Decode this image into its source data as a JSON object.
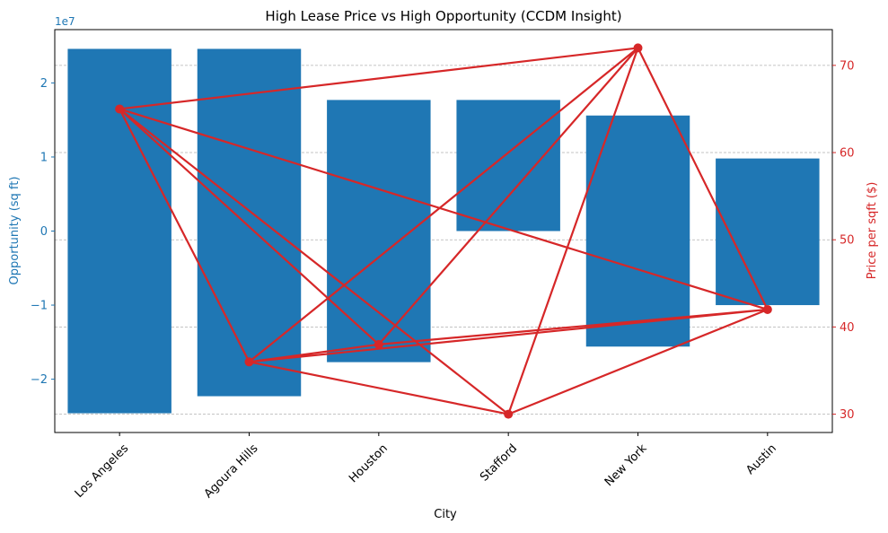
{
  "chart_data": {
    "type": "bar",
    "title": "High Lease Price vs High Opportunity (CCDM Insight)",
    "xlabel": "City",
    "ylabel_left": "Opportunity (sq ft)",
    "ylabel_right": "Price per sqft ($)",
    "left_axis_multiplier": "1e7",
    "categories": [
      "Los Angeles",
      "Agoura Hills",
      "Houston",
      "Stafford",
      "New York",
      "Austin"
    ],
    "bars": [
      {
        "category": "Los Angeles",
        "low": -24600000,
        "high": 24600000
      },
      {
        "category": "Agoura Hills",
        "low": -22300000,
        "high": 24600000
      },
      {
        "category": "Houston",
        "low": -17700000,
        "high": 17700000
      },
      {
        "category": "Stafford",
        "low": 0,
        "high": 17700000
      },
      {
        "category": "New York",
        "low": -15600000,
        "high": 15600000
      },
      {
        "category": "Austin",
        "low": -10000000,
        "high": 9800000
      }
    ],
    "left_ylim": [
      -27200000.0,
      27200000.0
    ],
    "left_ticks": [
      -20000000,
      -10000000,
      0,
      10000000,
      20000000
    ],
    "left_tick_labels": [
      "−2",
      "−1",
      "0",
      "1",
      "2"
    ],
    "right_ylim": [
      27.9,
      74.1
    ],
    "right_ticks": [
      30,
      40,
      50,
      60,
      70
    ],
    "right_tick_labels": [
      "30",
      "40",
      "50",
      "60",
      "70"
    ],
    "price_line": {
      "x": [
        0,
        4,
        0,
        1,
        4,
        5,
        0,
        3,
        4,
        1,
        5,
        3,
        0,
        2,
        5,
        1,
        2,
        0,
        1,
        3,
        5,
        2,
        4,
        3
      ],
      "y": [
        65,
        72,
        65,
        36,
        72,
        42,
        65,
        30,
        72,
        36,
        42,
        30,
        65,
        38,
        42,
        36,
        38,
        65,
        36,
        30,
        42,
        38,
        72,
        30
      ]
    },
    "grid": "y-dashed",
    "colors": {
      "bar": "#1f77b4",
      "line": "#d62728",
      "left_axis": "#1f77b4",
      "right_axis": "#d62728"
    }
  }
}
